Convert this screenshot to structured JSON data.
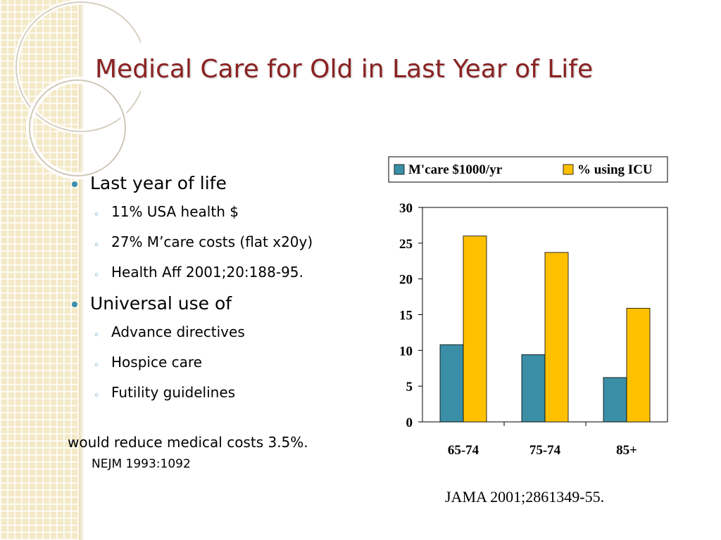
{
  "slide": {
    "title": "Medical Care for Old in Last Year of Life",
    "bullets": [
      {
        "text": "Last year of life",
        "sub": [
          "11% USA health $",
          "27% M’care costs (flat x20y)",
          "Health Aff 2001;20:188-95."
        ]
      },
      {
        "text": "Universal use of",
        "sub": [
          "Advance directives",
          "Hospice care",
          "Futility guidelines"
        ]
      }
    ],
    "conclusion": "would reduce medical costs 3.5%.",
    "citation": "NEJM 1993:1092"
  },
  "colors": {
    "title": "#8b2222",
    "bullet": "#3a8fb0",
    "mcare": "#3a8fa6",
    "icu": "#ffc000"
  },
  "chart_data": {
    "type": "bar",
    "categories": [
      "65-74",
      "75-74",
      "85+"
    ],
    "series": [
      {
        "name": "M'care $1000/yr",
        "values": [
          10.8,
          9.4,
          6.2
        ],
        "color": "#3a8fa6"
      },
      {
        "name": "%  using ICU",
        "values": [
          26,
          23.7,
          15.9
        ],
        "color": "#ffc000"
      }
    ],
    "ylim": [
      0,
      30
    ],
    "yticks": [
      "0",
      "5",
      "10",
      "15",
      "20",
      "25",
      "30"
    ],
    "legend_position": "top",
    "grid": false,
    "source": "JAMA 2001;2861349-55."
  }
}
